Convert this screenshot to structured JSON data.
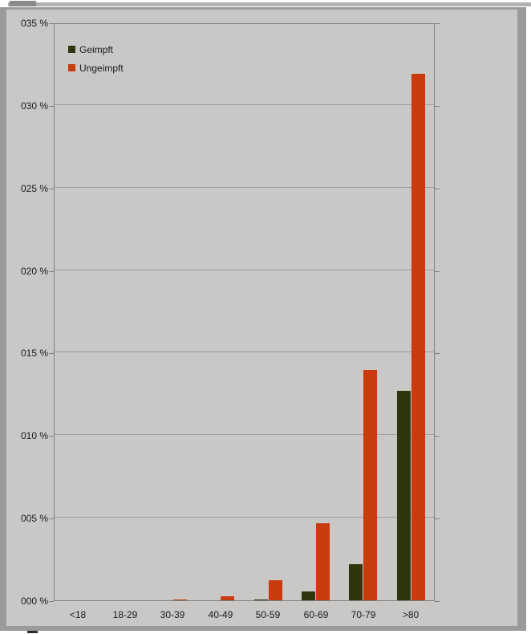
{
  "chart_data": {
    "type": "bar",
    "categories": [
      "<18",
      "18-29",
      "30-39",
      "40-49",
      "50-59",
      "60-69",
      "70-79",
      ">80"
    ],
    "series": [
      {
        "name": "Geimpft",
        "color": "#2e360e",
        "values": [
          0,
          0,
          0,
          0,
          0.07,
          0.53,
          2.2,
          12.7
        ]
      },
      {
        "name": "Ungeimpft",
        "color": "#ca3a0f",
        "values": [
          0,
          0,
          0.07,
          0.26,
          1.22,
          4.67,
          13.93,
          31.9
        ]
      }
    ],
    "title": "",
    "xlabel": "",
    "ylabel": "",
    "ylim": [
      0,
      35
    ],
    "ytick_step": 5,
    "ytick_labels": [
      "000 %",
      "005 %",
      "010 %",
      "015 %",
      "020 %",
      "025 %",
      "030 %",
      "035 %"
    ],
    "grid": "horizontal",
    "legend_position": "top-left-inside"
  },
  "colors": {
    "panel_background": "#c9c8c6",
    "panel_frame": "#9b9b9b",
    "gridline": "#9c9c9c",
    "axis": "#7f7f7f",
    "text": "#1a1a1a",
    "scrollbar_track": "#b1b1b0",
    "scrollbar_thumb": "#8a8a8a"
  },
  "legend": {
    "items": [
      {
        "label": "Geimpft"
      },
      {
        "label": "Ungeimpft"
      }
    ]
  }
}
